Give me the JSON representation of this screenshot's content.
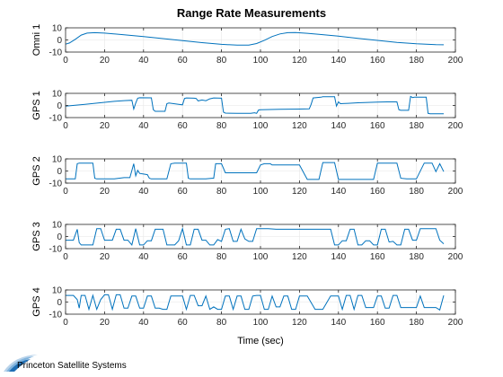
{
  "chart_data": {
    "type": "line",
    "title": "Range Rate Measurements",
    "xlabel": "Time (sec)",
    "xlim": [
      0,
      200
    ],
    "xticks": [
      0,
      20,
      40,
      60,
      80,
      100,
      120,
      140,
      160,
      180,
      200
    ],
    "line_color": "#0072BD",
    "subplots": [
      {
        "ylabel": "Omni 1",
        "ylim": [
          -10,
          10
        ],
        "yticks": [
          -10,
          0,
          10
        ],
        "x": [
          0,
          2,
          5,
          8,
          11,
          15,
          20,
          30,
          40,
          50,
          60,
          70,
          80,
          88,
          94,
          98,
          102,
          106,
          110,
          114,
          118,
          124,
          130,
          140,
          150,
          160,
          170,
          180,
          190,
          194
        ],
        "y": [
          -3.5,
          -2.5,
          0.5,
          4.0,
          5.6,
          6.0,
          5.6,
          4.3,
          2.8,
          1.1,
          -0.6,
          -2.2,
          -3.6,
          -4.3,
          -4.2,
          -3.0,
          -0.3,
          2.8,
          5.0,
          6.0,
          6.1,
          5.5,
          4.7,
          3.1,
          1.3,
          -0.4,
          -2.0,
          -3.2,
          -3.9,
          -4.0
        ]
      },
      {
        "ylabel": "GPS 1",
        "ylim": [
          -10,
          10
        ],
        "yticks": [
          -10,
          0,
          10
        ],
        "x": [
          0,
          5,
          10,
          15,
          20,
          25,
          30,
          34,
          35,
          36,
          37,
          38,
          44,
          45,
          46,
          51,
          52,
          53,
          58,
          60,
          61,
          62,
          66,
          67,
          68,
          70,
          72,
          74,
          76,
          80,
          81,
          82,
          88,
          90,
          95,
          97,
          98,
          99,
          100,
          110,
          120,
          125,
          126,
          127,
          131,
          132,
          138,
          139,
          140,
          141,
          145,
          150,
          155,
          160,
          165,
          170,
          171,
          172,
          173,
          174,
          176,
          177,
          178,
          179,
          185,
          186,
          187,
          190,
          194
        ],
        "y": [
          -0.5,
          0.2,
          1.0,
          1.8,
          2.6,
          3.4,
          4.0,
          4.3,
          -3.0,
          2.0,
          6.0,
          6.4,
          6.3,
          -3.5,
          -4.8,
          -4.8,
          1.5,
          2.0,
          1.0,
          0.5,
          5.8,
          6.2,
          6.0,
          5.8,
          3.8,
          4.5,
          3.9,
          5.5,
          6.2,
          6.0,
          -5.5,
          -6.3,
          -6.5,
          -6.5,
          -6.5,
          -6.0,
          -6.5,
          -3.8,
          -3.5,
          -3.2,
          -3.0,
          -2.8,
          1.0,
          6.2,
          6.8,
          7.2,
          7.2,
          -0.5,
          3.0,
          1.5,
          1.8,
          2.2,
          2.5,
          2.8,
          3.0,
          3.0,
          -3.5,
          -4.0,
          -4.0,
          -4.0,
          -4.0,
          7.5,
          6.5,
          6.8,
          6.8,
          -6.5,
          -6.8,
          -6.8,
          -6.8
        ]
      },
      {
        "ylabel": "GPS 2",
        "ylim": [
          -10,
          10
        ],
        "yticks": [
          -10,
          0,
          10
        ],
        "x": [
          0,
          2,
          4,
          5,
          6,
          7,
          8,
          10,
          12,
          14,
          15,
          16,
          20,
          25,
          30,
          33,
          35,
          36,
          37,
          38,
          40,
          42,
          43,
          44,
          48,
          52,
          54,
          56,
          57,
          58,
          62,
          63,
          64,
          68,
          72,
          75,
          76,
          77,
          80,
          82,
          84,
          88,
          90,
          95,
          98,
          100,
          102,
          104,
          105,
          106,
          110,
          112,
          114,
          118,
          120,
          124,
          126,
          128,
          130,
          132,
          134,
          136,
          138,
          140,
          142,
          145,
          150,
          155,
          158,
          160,
          162,
          166,
          168,
          170,
          172,
          175,
          176,
          178,
          180,
          184,
          186,
          188,
          190,
          192,
          194
        ],
        "y": [
          -6.5,
          -6.5,
          -6.5,
          -6.5,
          6.0,
          6.5,
          6.5,
          6.5,
          6.5,
          6.5,
          -6.0,
          -6.5,
          -6.5,
          -6.5,
          -5.5,
          -5.5,
          6.0,
          -4.0,
          0.5,
          -2.0,
          -2.5,
          -3.0,
          -6.0,
          -6.5,
          -6.5,
          -6.5,
          6.0,
          6.5,
          6.5,
          6.5,
          6.5,
          -6.0,
          -6.5,
          -6.5,
          -6.5,
          -6.0,
          -6.0,
          6.0,
          6.0,
          -1.5,
          -1.5,
          -1.5,
          -1.5,
          -1.5,
          -1.5,
          5.0,
          6.0,
          6.0,
          6.0,
          5.0,
          5.0,
          5.0,
          5.0,
          5.0,
          5.0,
          -7.0,
          -7.0,
          -7.0,
          -7.0,
          7.0,
          7.0,
          7.0,
          7.0,
          -7.0,
          -7.0,
          -7.0,
          -7.0,
          -7.0,
          -7.0,
          6.5,
          6.5,
          6.5,
          6.5,
          6.5,
          -6.0,
          -6.5,
          -6.5,
          -6.5,
          -6.5,
          6.5,
          6.5,
          6.5,
          -0.5,
          6.0,
          -0.5
        ]
      },
      {
        "ylabel": "GPS 3",
        "ylim": [
          -10,
          10
        ],
        "yticks": [
          -10,
          0,
          10
        ],
        "x": [
          0,
          2,
          4,
          6,
          7,
          8,
          10,
          12,
          14,
          16,
          18,
          20,
          24,
          26,
          28,
          30,
          32,
          34,
          36,
          38,
          40,
          42,
          44,
          46,
          48,
          50,
          52,
          54,
          56,
          58,
          60,
          62,
          64,
          66,
          68,
          70,
          72,
          74,
          76,
          78,
          80,
          82,
          84,
          86,
          88,
          90,
          92,
          94,
          96,
          98,
          100,
          104,
          108,
          112,
          116,
          120,
          124,
          128,
          132,
          136,
          138,
          140,
          142,
          144,
          146,
          148,
          150,
          152,
          154,
          156,
          158,
          160,
          162,
          164,
          166,
          168,
          170,
          172,
          174,
          176,
          178,
          180,
          182,
          184,
          186,
          188,
          190,
          192,
          194
        ],
        "y": [
          -3.0,
          -3.0,
          -3.0,
          6.0,
          -5.0,
          -7.0,
          -7.0,
          -7.0,
          -7.0,
          6.5,
          6.5,
          -3.0,
          -3.0,
          6.0,
          6.0,
          -3.0,
          -3.0,
          -7.0,
          6.5,
          -7.0,
          -7.0,
          -3.5,
          -3.5,
          6.0,
          6.0,
          6.0,
          -7.0,
          -7.0,
          -7.0,
          -3.5,
          6.5,
          -7.0,
          -7.0,
          6.0,
          6.0,
          -3.0,
          -3.0,
          -7.0,
          -7.0,
          -2.5,
          -4.0,
          6.0,
          6.5,
          -4.0,
          -4.0,
          6.0,
          -2.0,
          -4.0,
          -4.0,
          6.5,
          6.5,
          6.5,
          6.0,
          6.0,
          6.0,
          6.0,
          6.0,
          6.0,
          6.0,
          6.0,
          -7.0,
          -7.0,
          -3.5,
          -3.5,
          6.0,
          6.0,
          -7.0,
          -7.0,
          -3.5,
          -3.5,
          -7.0,
          -7.0,
          6.0,
          6.0,
          -4.5,
          -4.0,
          -7.0,
          -7.0,
          6.0,
          6.0,
          -3.0,
          -3.0,
          6.5,
          6.5,
          6.5,
          6.5,
          6.5,
          -3.0,
          -6.0
        ]
      },
      {
        "ylabel": "GPS 4",
        "ylim": [
          -10,
          10
        ],
        "yticks": [
          -10,
          0,
          10
        ],
        "x": [
          0,
          2,
          4,
          6,
          7,
          8,
          10,
          12,
          14,
          16,
          18,
          20,
          22,
          24,
          26,
          28,
          30,
          32,
          34,
          36,
          38,
          40,
          42,
          44,
          46,
          48,
          50,
          52,
          54,
          56,
          58,
          60,
          62,
          64,
          66,
          68,
          70,
          72,
          74,
          76,
          78,
          80,
          82,
          84,
          86,
          88,
          90,
          92,
          94,
          96,
          98,
          100,
          102,
          104,
          106,
          108,
          110,
          112,
          114,
          116,
          118,
          120,
          124,
          128,
          132,
          136,
          140,
          142,
          144,
          146,
          148,
          150,
          152,
          154,
          156,
          158,
          160,
          162,
          164,
          166,
          168,
          170,
          172,
          174,
          176,
          178,
          180,
          182,
          184,
          186,
          188,
          190,
          192,
          194
        ],
        "y": [
          5.5,
          5.5,
          5.5,
          2.0,
          -5.0,
          5.5,
          5.5,
          -6.0,
          5.5,
          -6.0,
          2.0,
          6.0,
          6.0,
          -6.0,
          6.0,
          6.0,
          -5.0,
          -5.0,
          5.0,
          5.0,
          -5.0,
          -5.0,
          5.0,
          5.0,
          -5.0,
          -5.0,
          -6.0,
          -6.0,
          5.0,
          5.0,
          5.0,
          5.0,
          -6.0,
          5.5,
          5.5,
          -3.0,
          -3.0,
          5.0,
          -6.0,
          -4.0,
          -6.0,
          -6.0,
          5.0,
          5.0,
          -6.0,
          5.0,
          5.0,
          -6.0,
          -6.0,
          5.0,
          5.5,
          5.5,
          -6.0,
          -6.0,
          5.0,
          -4.0,
          -4.0,
          5.0,
          5.0,
          -6.0,
          -6.0,
          5.0,
          5.0,
          -6.0,
          -6.0,
          5.0,
          5.0,
          -6.0,
          5.5,
          5.5,
          -6.0,
          5.5,
          5.5,
          -4.5,
          -4.5,
          -4.5,
          5.0,
          5.0,
          -5.0,
          -5.0,
          5.5,
          5.5,
          -4.5,
          -4.5,
          -4.5,
          -4.5,
          -4.5,
          5.0,
          -4.5,
          -4.5,
          -4.5,
          -4.5,
          -6.5,
          5.5
        ]
      }
    ]
  },
  "logo": {
    "text": "Princeton Satellite Systems",
    "colors": [
      "#1f6fb5",
      "#7fb3dd",
      "#b9d3ea"
    ]
  }
}
